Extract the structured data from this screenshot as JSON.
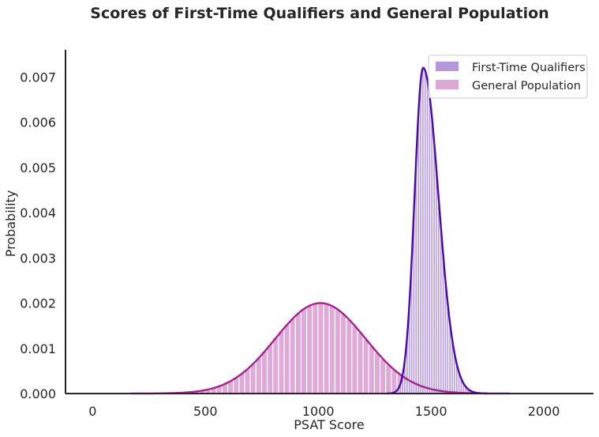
{
  "chart_data": {
    "type": "histogram",
    "title": "Scores of First-Time Qualifiers and General Population",
    "xlabel": "PSAT Score",
    "ylabel": "Probability",
    "xlim": [
      -120,
      2220
    ],
    "ylim": [
      0,
      0.0076
    ],
    "xticks": [
      0,
      500,
      1000,
      1500,
      2000
    ],
    "yticks": [
      0.0,
      0.001,
      0.002,
      0.003,
      0.004,
      0.005,
      0.006,
      0.007
    ],
    "ytick_labels": [
      "0.000",
      "0.001",
      "0.002",
      "0.003",
      "0.004",
      "0.005",
      "0.006",
      "0.007"
    ],
    "grid": false,
    "legend_position": "top-right",
    "series": [
      {
        "name": "First-Time Qualifiers",
        "bar_color": "#b497dc",
        "line_color": "#4a0aa6",
        "mean": 1465,
        "sd_left": 38,
        "sd_right": 68,
        "peak": 0.0072,
        "bin_start": 1360,
        "bin_end": 1900,
        "bin_width": 10
      },
      {
        "name": "General Population",
        "bar_color": "#dca6d6",
        "line_color": "#a8218f",
        "mean": 1010,
        "sd": 200,
        "peak": 0.002,
        "bin_start": 200,
        "bin_end": 1760,
        "bin_width": 25
      }
    ]
  }
}
